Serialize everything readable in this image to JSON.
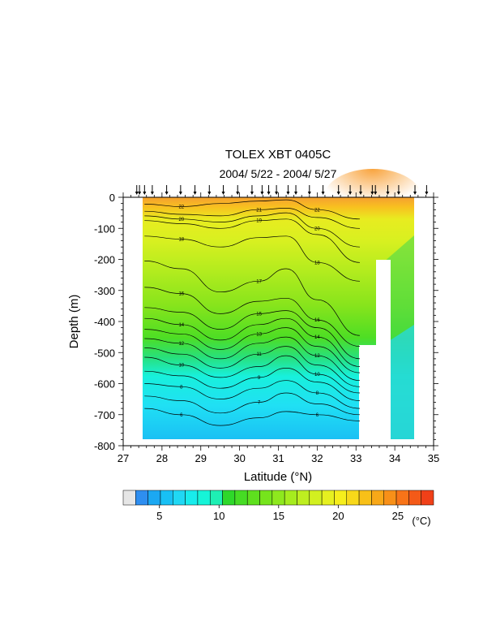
{
  "chart_data": {
    "type": "heatmap",
    "title": "TOLEX XBT 0405C",
    "subtitle": "2004/ 5/22 - 2004/ 5/27",
    "xlabel": "Latitude (°N)",
    "ylabel": "Depth (m)",
    "xlim": [
      27,
      35
    ],
    "ylim": [
      -800,
      0
    ],
    "x_ticks": [
      "27",
      "28",
      "29",
      "30",
      "31",
      "32",
      "33",
      "34",
      "35"
    ],
    "y_ticks": [
      "0",
      "-100",
      "-200",
      "-300",
      "-400",
      "-500",
      "-600",
      "-700",
      "-800"
    ],
    "station_latitudes": [
      27.35,
      27.42,
      27.55,
      27.75,
      28.12,
      28.48,
      28.85,
      29.22,
      29.58,
      29.95,
      30.32,
      30.58,
      30.75,
      30.95,
      31.25,
      31.45,
      31.8,
      32.15,
      32.55,
      32.85,
      33.12,
      33.42,
      33.5,
      33.82,
      34.1,
      34.52,
      34.82
    ],
    "contours": [
      {
        "level": 6,
        "label": "6",
        "points": [
          [
            27.55,
            -680
          ],
          [
            28.5,
            -700
          ],
          [
            29.5,
            -735
          ],
          [
            30.5,
            -710
          ],
          [
            31.2,
            -690
          ],
          [
            32,
            -700
          ],
          [
            33.1,
            -720
          ]
        ]
      },
      {
        "level": 7,
        "label": "7",
        "points": [
          [
            27.55,
            -640
          ],
          [
            28.5,
            -655
          ],
          [
            29.5,
            -695
          ],
          [
            30.5,
            -660
          ],
          [
            31.2,
            -630
          ],
          [
            32,
            -665
          ],
          [
            33.1,
            -700
          ]
        ]
      },
      {
        "level": 8,
        "label": "8",
        "points": [
          [
            27.55,
            -600
          ],
          [
            28.5,
            -610
          ],
          [
            29.5,
            -650
          ],
          [
            30.5,
            -615
          ],
          [
            31.2,
            -590
          ],
          [
            32,
            -630
          ],
          [
            33.1,
            -680
          ]
        ]
      },
      {
        "level": 9,
        "label": "9",
        "points": [
          [
            27.55,
            -560
          ],
          [
            28.5,
            -575
          ],
          [
            29.5,
            -615
          ],
          [
            30.5,
            -580
          ],
          [
            31.2,
            -550
          ],
          [
            32,
            -595
          ],
          [
            33.1,
            -655
          ]
        ]
      },
      {
        "level": 10,
        "label": "10",
        "points": [
          [
            27.55,
            -515
          ],
          [
            28.5,
            -540
          ],
          [
            29.5,
            -580
          ],
          [
            30.5,
            -545
          ],
          [
            31.2,
            -510
          ],
          [
            32,
            -570
          ],
          [
            33.1,
            -630
          ]
        ]
      },
      {
        "level": 11,
        "label": "11",
        "points": [
          [
            27.55,
            -485
          ],
          [
            28.5,
            -505
          ],
          [
            29.5,
            -550
          ],
          [
            30.5,
            -505
          ],
          [
            31.2,
            -480
          ],
          [
            32,
            -540
          ],
          [
            33.1,
            -610
          ]
        ]
      },
      {
        "level": 12,
        "label": "12",
        "points": [
          [
            27.55,
            -455
          ],
          [
            28.5,
            -470
          ],
          [
            29.5,
            -520
          ],
          [
            30.5,
            -470
          ],
          [
            31.2,
            -450
          ],
          [
            32,
            -510
          ],
          [
            33.1,
            -590
          ]
        ]
      },
      {
        "level": 13,
        "label": "13",
        "points": [
          [
            27.55,
            -425
          ],
          [
            28.5,
            -440
          ],
          [
            29.5,
            -490
          ],
          [
            30.5,
            -440
          ],
          [
            31.2,
            -420
          ],
          [
            32,
            -480
          ],
          [
            33.1,
            -565
          ]
        ]
      },
      {
        "level": 14,
        "label": "14",
        "points": [
          [
            27.55,
            -390
          ],
          [
            28.5,
            -410
          ],
          [
            29.5,
            -460
          ],
          [
            30.5,
            -410
          ],
          [
            31.2,
            -390
          ],
          [
            32,
            -450
          ],
          [
            33.1,
            -545
          ]
        ]
      },
      {
        "level": 15,
        "label": "15",
        "points": [
          [
            27.55,
            -355
          ],
          [
            28.5,
            -370
          ],
          [
            29.5,
            -425
          ],
          [
            30.5,
            -375
          ],
          [
            31.2,
            -365
          ],
          [
            32,
            -420
          ],
          [
            33.1,
            -520
          ]
        ]
      },
      {
        "level": 16,
        "label": "16",
        "points": [
          [
            27.55,
            -290
          ],
          [
            28.5,
            -310
          ],
          [
            29.5,
            -375
          ],
          [
            30.5,
            -335
          ],
          [
            31.2,
            -325
          ],
          [
            32,
            -395
          ],
          [
            33.1,
            -480
          ]
        ]
      },
      {
        "level": 17,
        "label": "17",
        "points": [
          [
            27.55,
            -205
          ],
          [
            28.5,
            -230
          ],
          [
            29.5,
            -305
          ],
          [
            30.5,
            -270
          ],
          [
            31.2,
            -230
          ],
          [
            32,
            -330
          ],
          [
            33.1,
            -445
          ]
        ]
      },
      {
        "level": 18,
        "label": "18",
        "points": [
          [
            27.55,
            -125
          ],
          [
            28.5,
            -135
          ],
          [
            29.5,
            -160
          ],
          [
            30.5,
            -130
          ],
          [
            31.2,
            -125
          ],
          [
            32,
            -210
          ],
          [
            33.1,
            -270
          ]
        ]
      },
      {
        "level": 19,
        "label": "19",
        "points": [
          [
            27.55,
            -75
          ],
          [
            28.5,
            -85
          ],
          [
            29.5,
            -100
          ],
          [
            30.5,
            -75
          ],
          [
            31.2,
            -70
          ],
          [
            32,
            -120
          ],
          [
            33.1,
            -210
          ]
        ]
      },
      {
        "level": 20,
        "label": "20",
        "points": [
          [
            27.55,
            -60
          ],
          [
            28.5,
            -70
          ],
          [
            29.5,
            -80
          ],
          [
            30.5,
            -60
          ],
          [
            31.2,
            -50
          ],
          [
            32,
            -100
          ],
          [
            33.1,
            -160
          ]
        ]
      },
      {
        "level": 21,
        "label": "21",
        "points": [
          [
            27.55,
            -45
          ],
          [
            28.5,
            -55
          ],
          [
            29.5,
            -60
          ],
          [
            30.5,
            -40
          ],
          [
            31.2,
            -35
          ],
          [
            32,
            -65
          ],
          [
            33.1,
            -100
          ]
        ]
      },
      {
        "level": 22,
        "label": "22",
        "points": [
          [
            27.55,
            -22
          ],
          [
            28.5,
            -30
          ],
          [
            29.5,
            -20
          ],
          [
            30.5,
            -12
          ],
          [
            31.2,
            -8
          ],
          [
            32,
            -40
          ],
          [
            33.1,
            -70
          ]
        ]
      }
    ],
    "colorbar": {
      "unit": "(°C)",
      "tick_labels": [
        "5",
        "10",
        "15",
        "20",
        "25"
      ],
      "tick_values": [
        5,
        10,
        15,
        20,
        25
      ],
      "min": 3,
      "max": 28,
      "colors": [
        "#e6e6e6",
        "#2e8ef0",
        "#1ba8f2",
        "#18c0f4",
        "#20d8f4",
        "#18ecec",
        "#16f4d8",
        "#1ef0b4",
        "#2ed82a",
        "#46dc24",
        "#5ee01e",
        "#76e41c",
        "#8ee81e",
        "#a6ec1e",
        "#beee20",
        "#d2f020",
        "#e6f020",
        "#f6ee1c",
        "#f8d81a",
        "#f8c018",
        "#f8a818",
        "#f89018",
        "#f87418",
        "#f45a18",
        "#f04018"
      ]
    }
  }
}
